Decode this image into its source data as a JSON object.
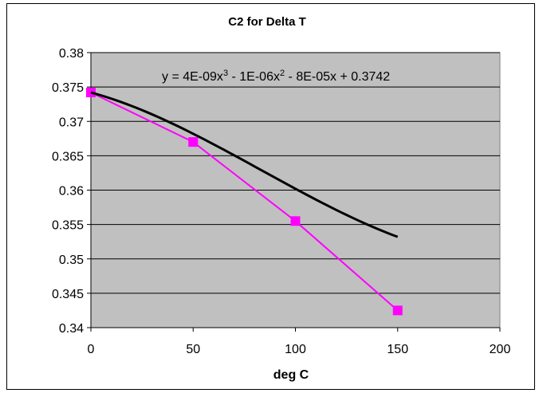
{
  "chart_data": {
    "type": "scatter",
    "title": "C2 for Delta T",
    "xlabel": "deg C",
    "ylabel": "",
    "xlim": [
      0,
      200
    ],
    "ylim": [
      0.34,
      0.38
    ],
    "x_ticks": [
      0,
      50,
      100,
      150,
      200
    ],
    "y_ticks": [
      0.34,
      0.345,
      0.35,
      0.355,
      0.36,
      0.365,
      0.37,
      0.375,
      0.38
    ],
    "grid": "horizontal",
    "plot_background": "#c0c0c0",
    "series": [
      {
        "marker": "square",
        "color": "#ff00ff",
        "x": [
          0,
          50,
          100,
          150
        ],
        "y": [
          0.3742,
          0.367,
          0.3555,
          0.3425
        ]
      }
    ],
    "trendline": {
      "type": "polynomial",
      "order": 3,
      "color": "#000000",
      "coefficients": [
        4e-09,
        -1e-06,
        -8e-05,
        0.3742
      ],
      "equation": {
        "prefix": "y = 4E-09x",
        "exp1": "3",
        "mid": " - 1E-06x",
        "exp2": "2",
        "suffix": " - 8E-05x + 0.3742"
      }
    }
  }
}
